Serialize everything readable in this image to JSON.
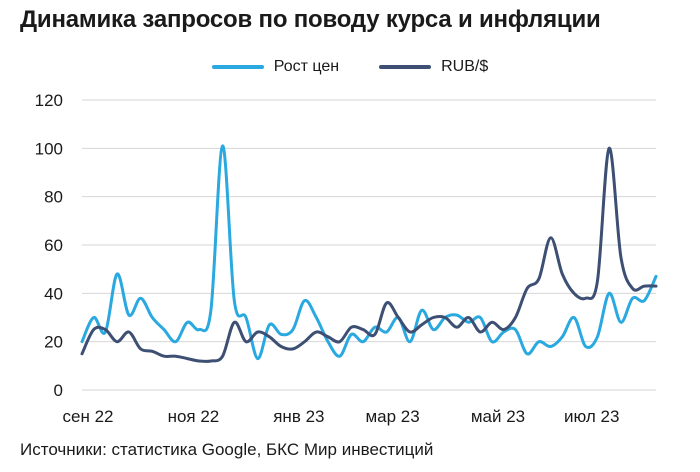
{
  "title": "Динамика запросов по поводу курса и инфляции",
  "source": "Источники: статистика Google, БКС Мир инвестиций",
  "colors": {
    "price_growth": "#29a9e0",
    "rub_usd": "#3d4f73",
    "grid": "#d6d6d6"
  },
  "chart_data": {
    "type": "line",
    "title": "Динамика запросов по поводу курса и инфляции",
    "xlabel": "",
    "ylabel": "",
    "ylim": [
      0,
      120
    ],
    "yticks": [
      0,
      20,
      40,
      60,
      80,
      100,
      120
    ],
    "xticks": [
      {
        "label": "сен 22",
        "week": 0
      },
      {
        "label": "ноя 22",
        "week": 9
      },
      {
        "label": "янв 23",
        "week": 18
      },
      {
        "label": "мар 23",
        "week": 26
      },
      {
        "label": "май 23",
        "week": 35
      },
      {
        "label": "июл 23",
        "week": 43
      }
    ],
    "grid": "horizontal",
    "legend_position": "top-center",
    "series": [
      {
        "name": "Рост цен",
        "values": [
          20,
          30,
          24,
          48,
          31,
          38,
          30,
          25,
          20,
          28,
          25,
          33,
          101,
          37,
          30,
          13,
          27,
          23,
          25,
          37,
          30,
          20,
          14,
          23,
          20,
          26,
          24,
          30,
          20,
          33,
          25,
          30,
          31,
          28,
          30,
          20,
          24,
          25,
          15,
          20,
          18,
          22,
          30,
          18,
          22,
          40,
          28,
          38,
          37,
          47
        ]
      },
      {
        "name": "RUB/$",
        "values": [
          15,
          25,
          25,
          20,
          24,
          17,
          16,
          14,
          14,
          13,
          12,
          12,
          14,
          28,
          20,
          24,
          22,
          18,
          17,
          20,
          24,
          22,
          20,
          26,
          25,
          23,
          36,
          30,
          24,
          27,
          30,
          30,
          26,
          30,
          24,
          28,
          25,
          30,
          42,
          46,
          63,
          48,
          40,
          38,
          45,
          100,
          55,
          42,
          43,
          43
        ]
      }
    ]
  }
}
